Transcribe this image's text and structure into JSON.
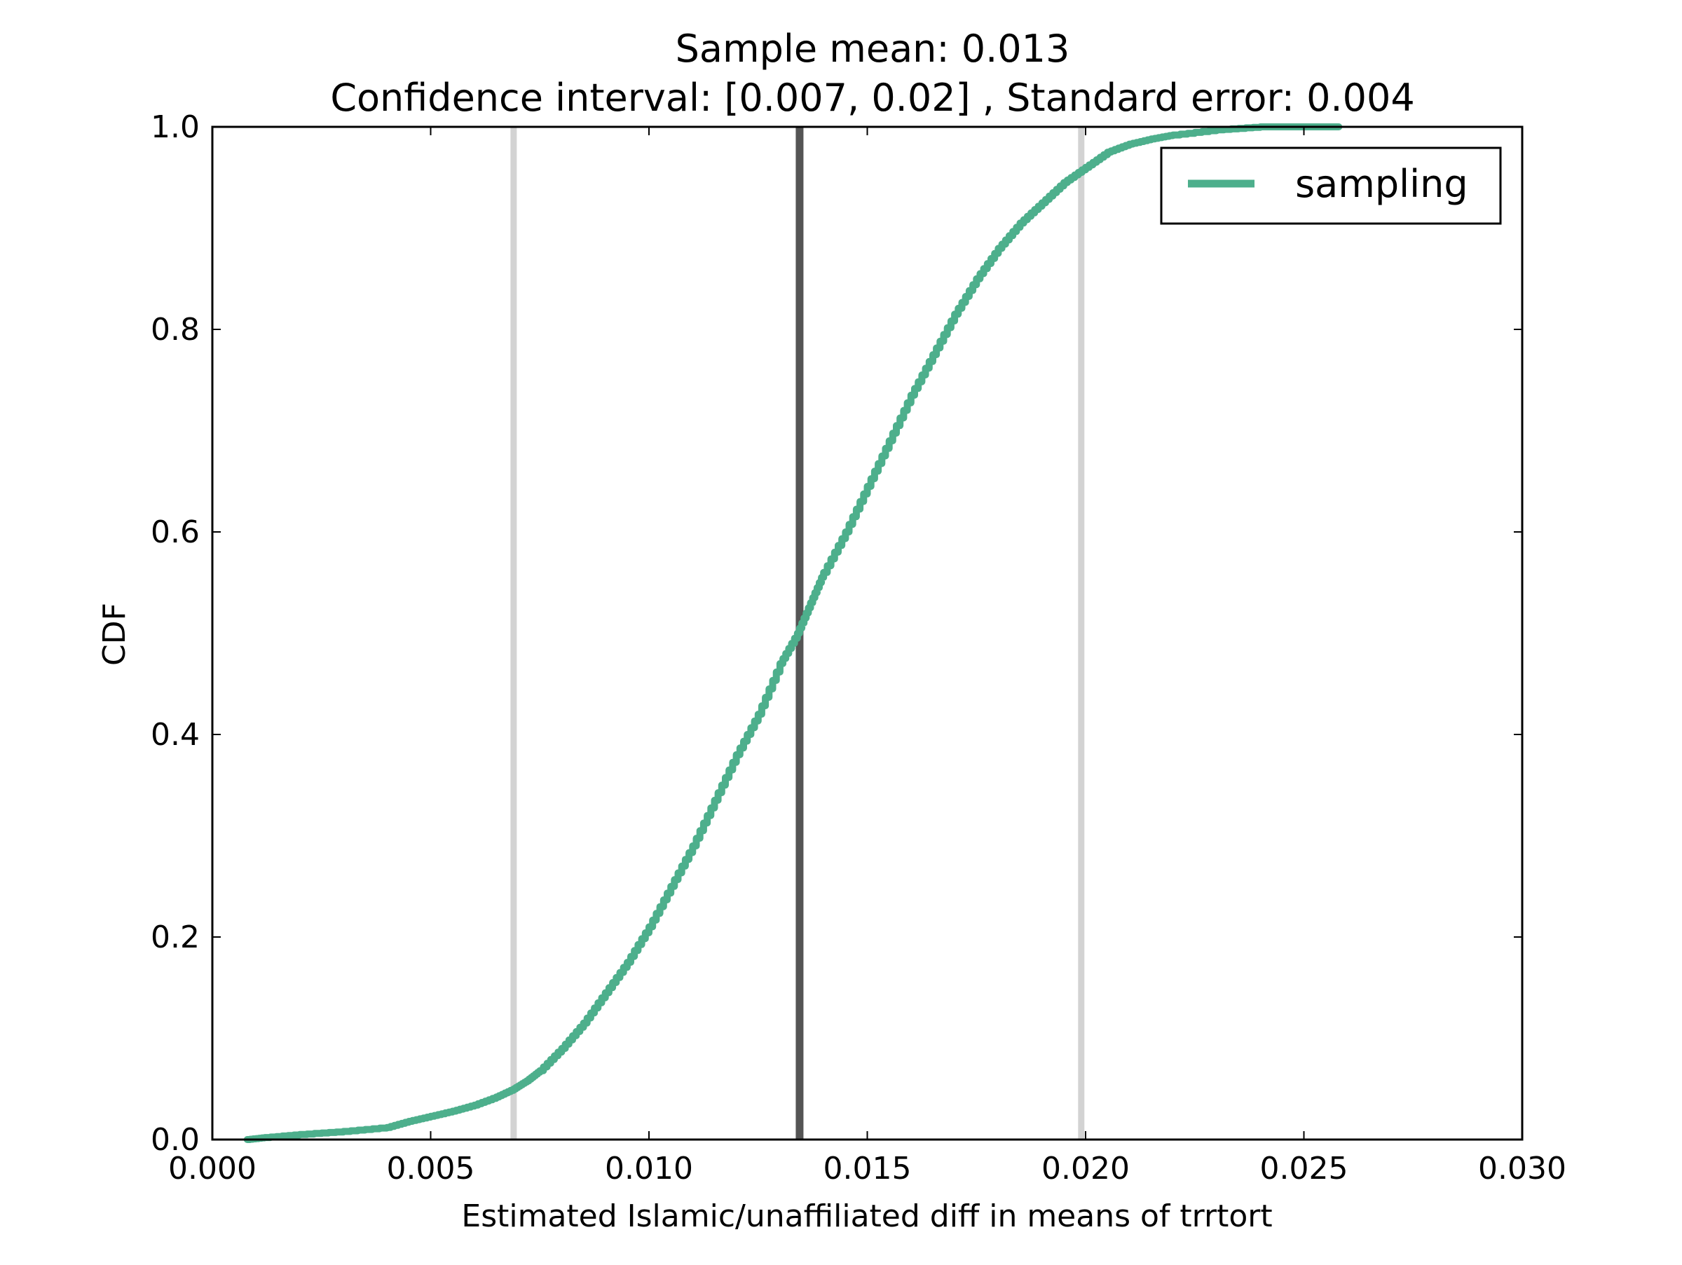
{
  "chart_data": {
    "type": "line",
    "title_line1": "Sample mean: 0.013",
    "title_line2": "Confidence interval: [0.007, 0.02] , Standard error: 0.004",
    "xlabel": "Estimated Islamic/unaffiliated diff in means of trrtort",
    "ylabel": "CDF",
    "xlim": [
      0.0,
      0.03
    ],
    "ylim": [
      0.0,
      1.0
    ],
    "x_ticks": [
      "0.000",
      "0.005",
      "0.010",
      "0.015",
      "0.020",
      "0.025",
      "0.030"
    ],
    "x_tick_values": [
      0.0,
      0.005,
      0.01,
      0.015,
      0.02,
      0.025,
      0.03
    ],
    "y_ticks": [
      "0.0",
      "0.2",
      "0.4",
      "0.6",
      "0.8",
      "1.0"
    ],
    "y_tick_values": [
      0.0,
      0.2,
      0.4,
      0.6,
      0.8,
      1.0
    ],
    "grid": false,
    "legend_position": "top-right",
    "series": [
      {
        "name": "sampling",
        "color": "#4daf8c",
        "x": [
          0.0008,
          0.0012,
          0.002,
          0.003,
          0.004,
          0.0045,
          0.005,
          0.0055,
          0.006,
          0.0065,
          0.0069,
          0.0072,
          0.0075,
          0.008,
          0.0085,
          0.009,
          0.0095,
          0.01,
          0.0105,
          0.011,
          0.0115,
          0.012,
          0.0125,
          0.013,
          0.0134,
          0.0137,
          0.014,
          0.0145,
          0.015,
          0.0155,
          0.016,
          0.0165,
          0.017,
          0.0175,
          0.018,
          0.0185,
          0.019,
          0.0195,
          0.02,
          0.0205,
          0.021,
          0.0215,
          0.022,
          0.023,
          0.024,
          0.0258
        ],
        "y": [
          0.0,
          0.002,
          0.005,
          0.008,
          0.012,
          0.018,
          0.023,
          0.028,
          0.034,
          0.042,
          0.05,
          0.058,
          0.068,
          0.09,
          0.115,
          0.145,
          0.175,
          0.21,
          0.25,
          0.29,
          0.335,
          0.38,
          0.42,
          0.47,
          0.5,
          0.53,
          0.56,
          0.6,
          0.645,
          0.69,
          0.735,
          0.775,
          0.815,
          0.85,
          0.88,
          0.905,
          0.925,
          0.945,
          0.96,
          0.975,
          0.983,
          0.988,
          0.992,
          0.997,
          1.0,
          1.0
        ]
      }
    ],
    "vertical_lines": [
      {
        "name": "ci-lower",
        "x": 0.0069,
        "color": "#d3d3d3"
      },
      {
        "name": "sample-mean",
        "x": 0.01345,
        "color": "#555555"
      },
      {
        "name": "ci-upper",
        "x": 0.0199,
        "color": "#d3d3d3"
      }
    ]
  }
}
